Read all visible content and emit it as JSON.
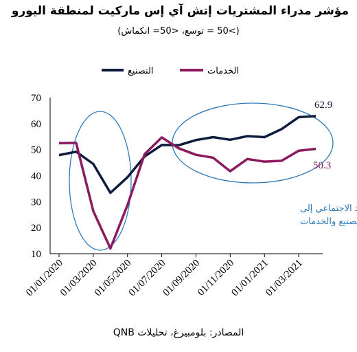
{
  "chart_data": {
    "type": "line",
    "title": "مؤشر مدراء المشتريات إتش آي إس ماركيت لمنطقة اليورو",
    "subtitle": "(>50 = توسع، <50= انكماش)",
    "source": "المصادر: بلومبيرغ، تحليلات QNB",
    "x_labels": [
      "01/01/2020",
      "01/03/2020",
      "01/05/2020",
      "01/07/2020",
      "01/09/2020",
      "01/11/2020",
      "01/01/2021",
      "01/03/2021"
    ],
    "x": [
      "01/01/2020",
      "01/02/2020",
      "01/03/2020",
      "01/04/2020",
      "01/05/2020",
      "01/06/2020",
      "01/07/2020",
      "01/08/2020",
      "01/09/2020",
      "01/10/2020",
      "01/11/2020",
      "01/12/2020",
      "01/01/2021",
      "01/02/2021",
      "01/03/2021",
      "01/04/2021"
    ],
    "ylim": [
      10,
      70
    ],
    "yticks": [
      10,
      20,
      30,
      40,
      50,
      60,
      70
    ],
    "grid": false,
    "legend_position": "top",
    "series": [
      {
        "name": "التصنيع",
        "color": "#0d1b3e",
        "values": [
          47.9,
          49.2,
          44.5,
          33.4,
          39.4,
          47.4,
          51.8,
          51.7,
          53.7,
          54.8,
          53.8,
          55.2,
          54.8,
          57.9,
          62.5,
          62.9
        ]
      },
      {
        "name": "الخدمات",
        "color": "#8b1a5e",
        "values": [
          52.5,
          52.6,
          26.4,
          12.0,
          28.7,
          48.3,
          54.7,
          50.5,
          48.0,
          46.9,
          41.7,
          46.4,
          45.4,
          45.7,
          49.6,
          50.3
        ]
      }
    ],
    "end_labels": [
      {
        "text": "62.9",
        "color": "#0d1b3e"
      },
      {
        "text": "50.3",
        "color": "#8b1a5e"
      }
    ],
    "annotation": {
      "line1": "تؤدي إجراءات التباعد الاجتماعي إلى",
      "line2": "تباين بين قطاعي التصنيع والخدمات",
      "color": "#2e7ab8"
    }
  }
}
